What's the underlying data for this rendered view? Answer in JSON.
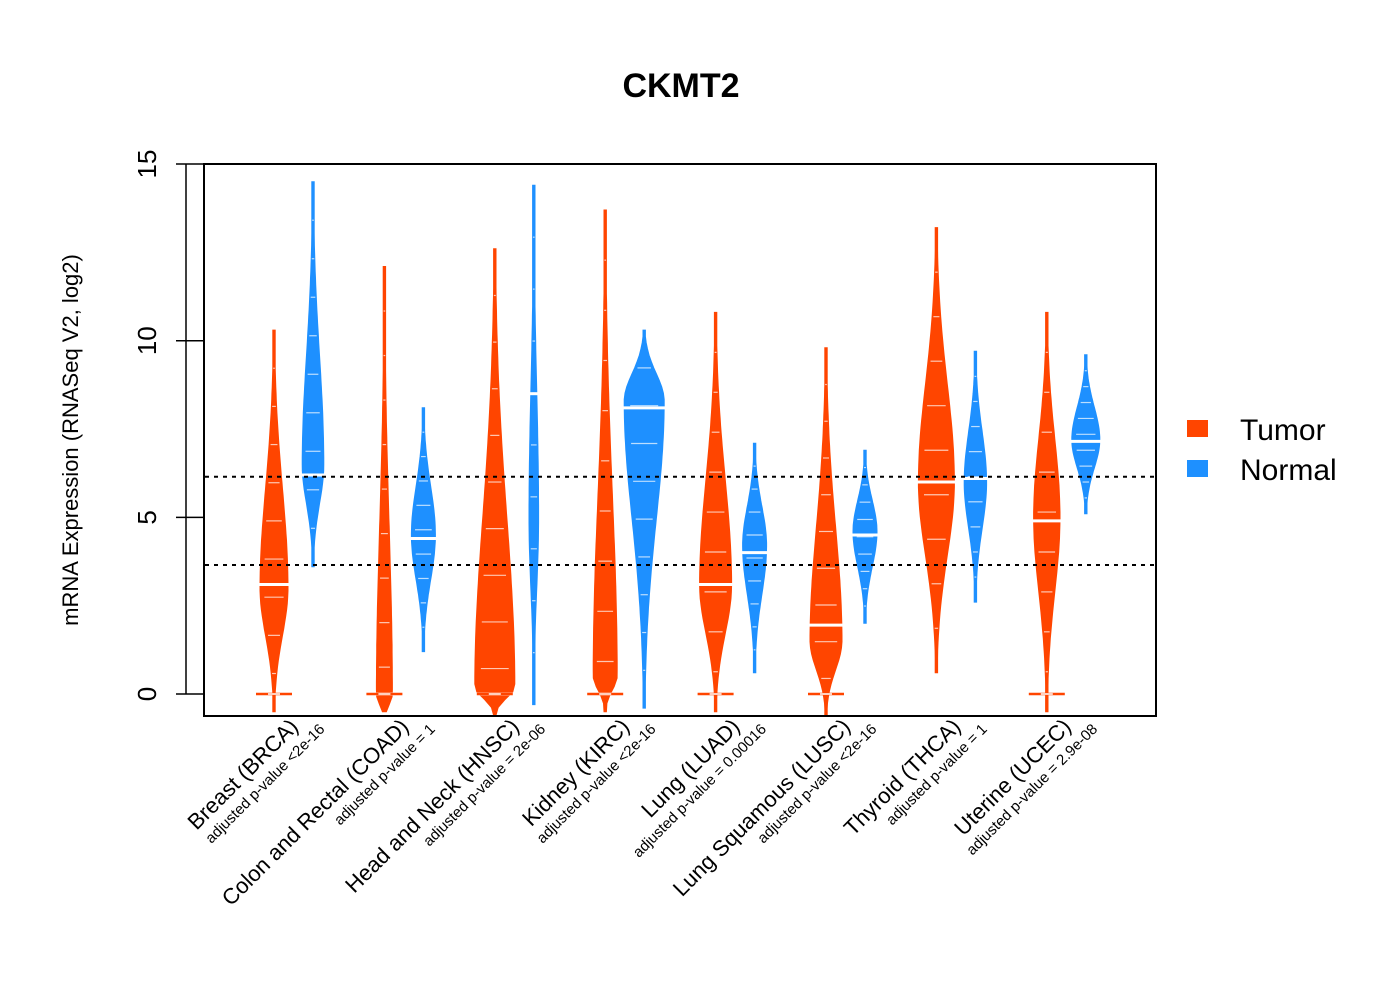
{
  "chart_data": {
    "type": "violin",
    "title": "CKMT2",
    "xlabel": "",
    "ylabel": "mRNA Expression (RNASeq V2, log2)",
    "ylim": [
      -0.6,
      15
    ],
    "yticks": [
      0,
      5,
      10,
      15
    ],
    "ytick_labels": [
      "0",
      "5",
      "10",
      "15"
    ],
    "grid": false,
    "reference_lines": [
      6.15,
      3.65
    ],
    "legend": {
      "placement": "right",
      "entries": [
        {
          "name": "Tumor",
          "color": "#FF4500"
        },
        {
          "name": "Normal",
          "color": "#1E90FF"
        }
      ]
    },
    "categories": [
      {
        "label": "Breast (BRCA)",
        "p_label": "adjusted p-value <2e-16"
      },
      {
        "label": "Colon and Rectal (COAD)",
        "p_label": "adjusted p-value = 1"
      },
      {
        "label": "Head and Neck (HNSC)",
        "p_label": "adjusted p-value = 2e-06"
      },
      {
        "label": "Kidney (KIRC)",
        "p_label": "adjusted p-value <2e-16"
      },
      {
        "label": "Lung (LUAD)",
        "p_label": "adjusted p-value = 0.00016"
      },
      {
        "label": "Lung Squamous (LUSC)",
        "p_label": "adjusted p-value <2e-16"
      },
      {
        "label": "Thyroid (THCA)",
        "p_label": "adjusted p-value = 1"
      },
      {
        "label": "Uterine (UCEC)",
        "p_label": "adjusted p-value = 2.9e-08"
      }
    ],
    "series": [
      {
        "name": "Tumor",
        "color": "#FF4500",
        "groups": [
          {
            "min": -0.5,
            "max": 10.3,
            "median": 3.1,
            "mode": 3.0,
            "max_halfwidth_rel": 0.35,
            "zero_marker": true
          },
          {
            "min": -0.5,
            "max": 12.1,
            "median": 0.0,
            "mode": 0.0,
            "max_halfwidth_rel": 0.2,
            "zero_marker": true
          },
          {
            "min": -0.6,
            "max": 12.6,
            "median": 0.0,
            "mode": 0.2,
            "max_halfwidth_rel": 0.5,
            "zero_marker": true
          },
          {
            "min": -0.5,
            "max": 13.7,
            "median": 0.0,
            "mode": 0.5,
            "max_halfwidth_rel": 0.3,
            "zero_marker": true
          },
          {
            "min": -0.5,
            "max": 10.8,
            "median": 3.1,
            "mode": 3.1,
            "max_halfwidth_rel": 0.4,
            "zero_marker": true
          },
          {
            "min": -0.6,
            "max": 9.8,
            "median": 1.95,
            "mode": 1.5,
            "max_halfwidth_rel": 0.4,
            "zero_marker": true
          },
          {
            "min": 0.6,
            "max": 13.2,
            "median": 6.0,
            "mode": 6.0,
            "max_halfwidth_rel": 0.45,
            "zero_marker": false
          },
          {
            "min": -0.5,
            "max": 10.8,
            "median": 4.9,
            "mode": 5.0,
            "max_halfwidth_rel": 0.33,
            "zero_marker": true
          }
        ]
      },
      {
        "name": "Normal",
        "color": "#1E90FF",
        "groups": [
          {
            "min": 3.6,
            "max": 14.5,
            "median": 6.2,
            "mode": 6.5,
            "max_halfwidth_rel": 0.27
          },
          {
            "min": 1.2,
            "max": 8.1,
            "median": 4.4,
            "mode": 4.5,
            "max_halfwidth_rel": 0.3
          },
          {
            "min": -0.3,
            "max": 14.4,
            "median": 8.5,
            "mode": 5.0,
            "max_halfwidth_rel": 0.12
          },
          {
            "min": -0.4,
            "max": 10.3,
            "median": 8.1,
            "mode": 8.3,
            "max_halfwidth_rel": 0.5
          },
          {
            "min": 0.6,
            "max": 7.1,
            "median": 4.0,
            "mode": 4.2,
            "max_halfwidth_rel": 0.3
          },
          {
            "min": 2.0,
            "max": 6.9,
            "median": 4.5,
            "mode": 4.6,
            "max_halfwidth_rel": 0.3
          },
          {
            "min": 2.6,
            "max": 9.7,
            "median": 6.1,
            "mode": 6.0,
            "max_halfwidth_rel": 0.28
          },
          {
            "min": 5.1,
            "max": 9.6,
            "median": 7.15,
            "mode": 7.2,
            "max_halfwidth_rel": 0.35
          }
        ]
      }
    ]
  }
}
